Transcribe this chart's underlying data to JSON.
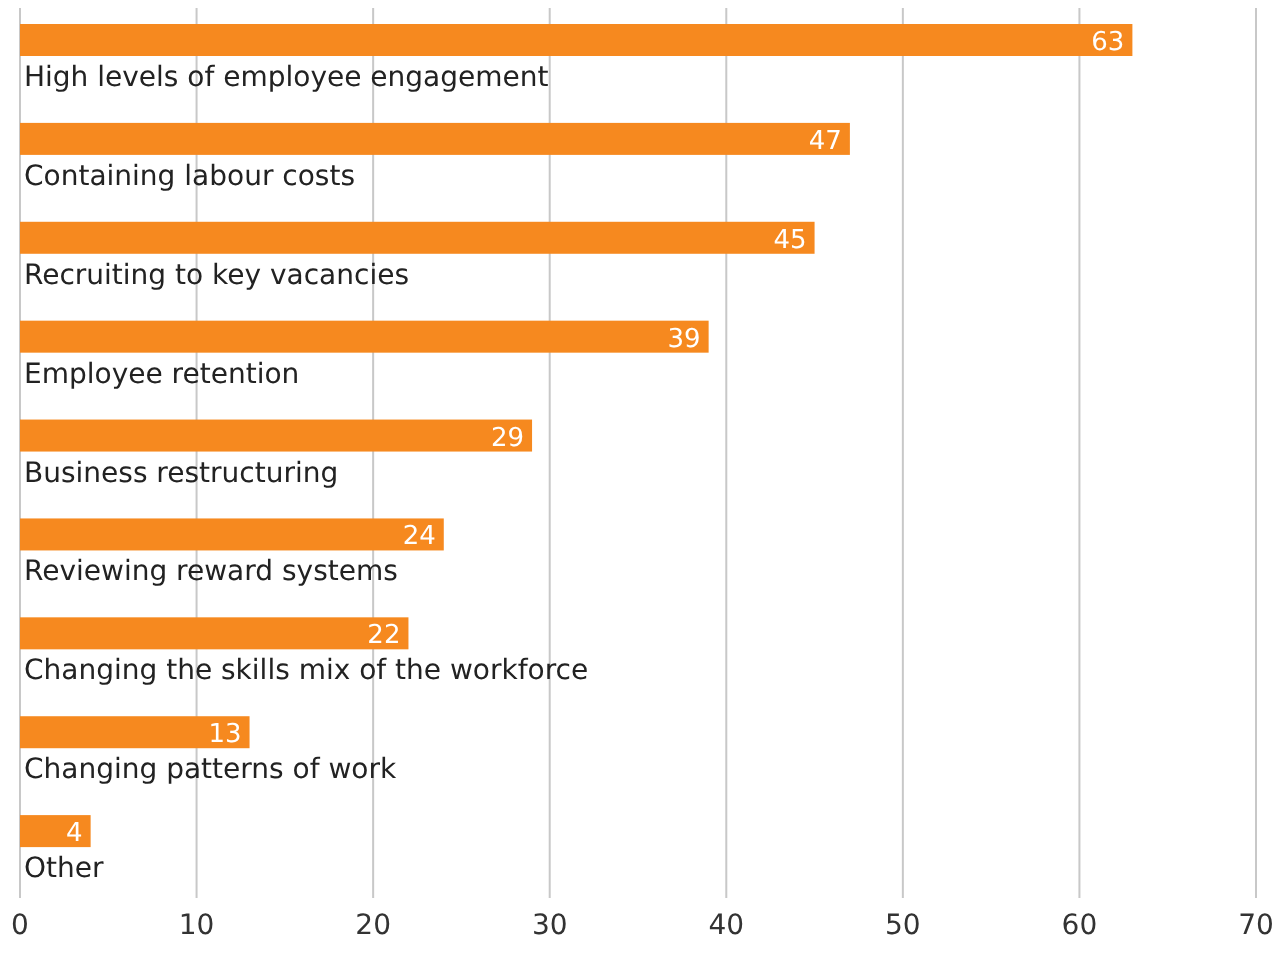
{
  "chart_data": {
    "type": "bar",
    "orientation": "horizontal",
    "categories": [
      "High levels of employee engagement",
      "Containing labour costs",
      "Recruiting to key vacancies",
      "Employee retention",
      "Business restructuring",
      "Reviewing reward systems",
      "Changing the skills mix of the workforce",
      "Changing patterns of work",
      "Other"
    ],
    "values": [
      63,
      47,
      45,
      39,
      29,
      24,
      22,
      13,
      4
    ],
    "color": "#f6891f",
    "xlim": [
      0,
      70
    ],
    "xticks": [
      0,
      10,
      20,
      30,
      40,
      50,
      60,
      70
    ],
    "grid": "x",
    "data_labels": true
  }
}
